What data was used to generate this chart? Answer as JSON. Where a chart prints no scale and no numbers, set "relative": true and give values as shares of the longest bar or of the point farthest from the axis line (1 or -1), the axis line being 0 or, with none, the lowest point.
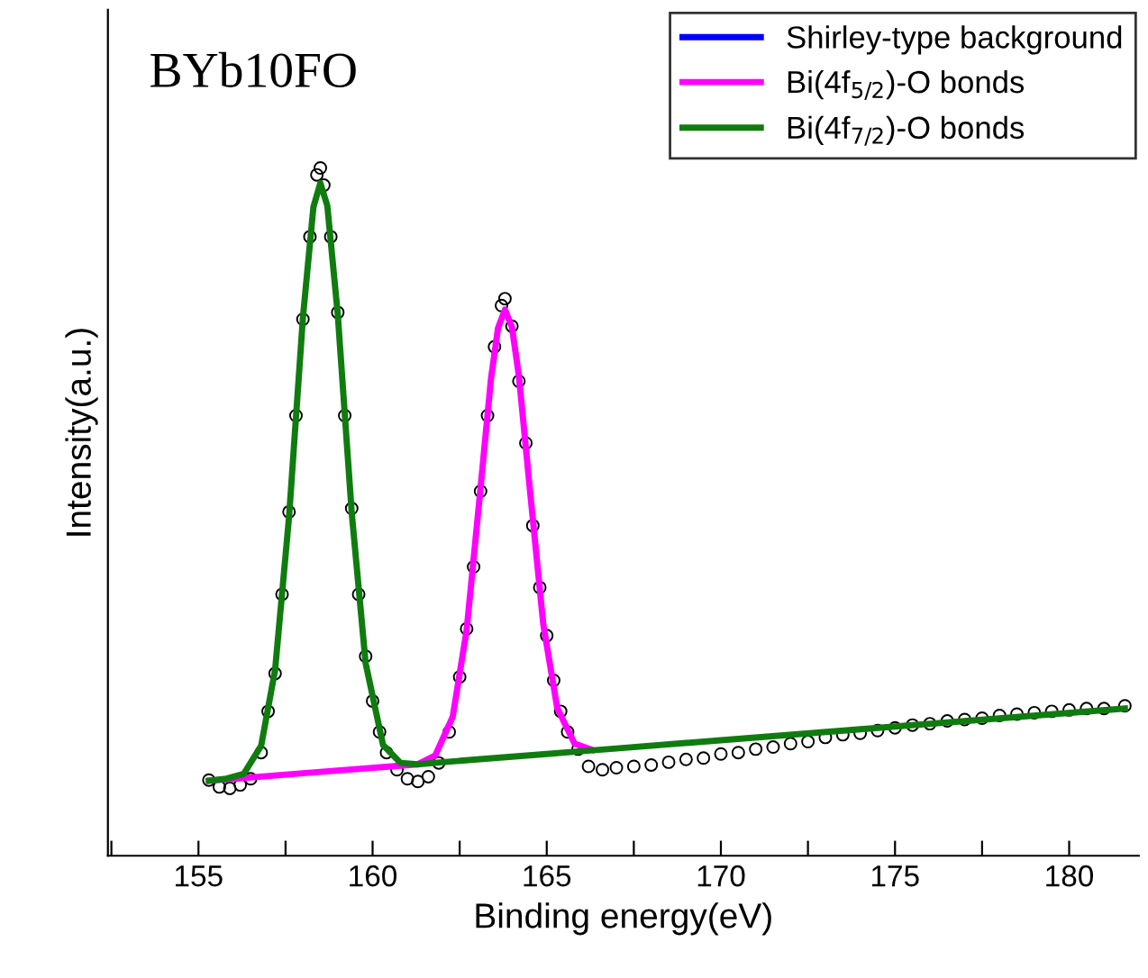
{
  "chart_data": {
    "type": "line",
    "relative": true,
    "xlabel": "Binding energy(eV)",
    "ylabel": "Intensity(a.u.)",
    "annotations": [
      "BYb10FO"
    ],
    "xlim": [
      152.4,
      182.0
    ],
    "xticks": [
      {
        "value": 152.5,
        "label": null
      },
      155,
      {
        "value": 157.5,
        "label": null
      },
      160,
      {
        "value": 162.5,
        "label": null
      },
      165,
      {
        "value": 167.5,
        "label": null
      },
      170,
      {
        "value": 172.5,
        "label": null
      },
      175,
      {
        "value": 177.5,
        "label": null
      },
      180
    ],
    "legend": "top right",
    "grid": false,
    "line_style": "solid",
    "series": [
      {
        "type": "scatter",
        "marker": "circle",
        "color": "#000000",
        "x": [
          155.3,
          155.6,
          155.9,
          156.2,
          156.5,
          156.8,
          157.0,
          157.2,
          157.4,
          157.6,
          157.8,
          158.0,
          158.2,
          158.4,
          158.5,
          158.6,
          158.8,
          159.0,
          159.2,
          159.4,
          159.6,
          159.8,
          160.0,
          160.2,
          160.4,
          160.7,
          161.0,
          161.3,
          161.6,
          161.9,
          162.2,
          162.5,
          162.7,
          162.9,
          163.1,
          163.3,
          163.5,
          163.7,
          163.8,
          164.0,
          164.2,
          164.4,
          164.6,
          164.8,
          165.0,
          165.2,
          165.4,
          165.6,
          165.9,
          166.2,
          166.6,
          167.0,
          167.5,
          168.0,
          168.5,
          169.0,
          169.5,
          170.0,
          170.5,
          171.0,
          171.5,
          172.0,
          172.5,
          173.0,
          173.5,
          174.0,
          174.5,
          175.0,
          175.5,
          176.0,
          176.5,
          177.0,
          177.5,
          178.0,
          178.5,
          179.0,
          179.5,
          180.0,
          180.5,
          181.0,
          181.6
        ],
        "values": [
          0.11,
          0.1,
          0.098,
          0.103,
          0.112,
          0.15,
          0.21,
          0.265,
          0.38,
          0.5,
          0.64,
          0.78,
          0.9,
          0.99,
          1.0,
          0.975,
          0.9,
          0.79,
          0.64,
          0.505,
          0.38,
          0.29,
          0.225,
          0.18,
          0.15,
          0.125,
          0.112,
          0.108,
          0.115,
          0.135,
          0.18,
          0.26,
          0.33,
          0.42,
          0.53,
          0.64,
          0.74,
          0.8,
          0.81,
          0.77,
          0.69,
          0.6,
          0.48,
          0.39,
          0.32,
          0.255,
          0.21,
          0.18,
          0.155,
          0.13,
          0.125,
          0.128,
          0.13,
          0.132,
          0.136,
          0.14,
          0.142,
          0.148,
          0.15,
          0.155,
          0.158,
          0.163,
          0.166,
          0.172,
          0.176,
          0.178,
          0.182,
          0.186,
          0.19,
          0.192,
          0.196,
          0.198,
          0.2,
          0.204,
          0.206,
          0.208,
          0.21,
          0.212,
          0.214,
          0.214,
          0.218
        ]
      },
      {
        "name": "Shirley-type background",
        "color": "#0000ff"
      },
      {
        "name": "Bi(4f$_{5/2}$)-O bonds",
        "color": "#ff00ff",
        "x": [
          155.3,
          158.0,
          161.3,
          161.8,
          162.3,
          162.7,
          163.1,
          163.4,
          163.6,
          163.8,
          164.0,
          164.2,
          164.5,
          164.9,
          165.3,
          165.8,
          166.3
        ],
        "values": [
          0.109,
          0.12,
          0.133,
          0.146,
          0.202,
          0.328,
          0.535,
          0.694,
          0.767,
          0.794,
          0.769,
          0.698,
          0.541,
          0.337,
          0.215,
          0.163,
          0.154
        ]
      },
      {
        "name": "Bi(4f$_{7/2}$)-O bonds",
        "color": "#107c10",
        "x": [
          155.3,
          155.8,
          156.3,
          156.8,
          157.2,
          157.6,
          158.0,
          158.3,
          158.5,
          158.7,
          159.0,
          159.4,
          159.8,
          160.3,
          160.8,
          161.3,
          162.0,
          163.0,
          164.0,
          165.0,
          166.0,
          167.0,
          170.0,
          175.0,
          181.6
        ],
        "values": [
          0.109,
          0.112,
          0.119,
          0.16,
          0.27,
          0.492,
          0.783,
          0.943,
          0.978,
          0.945,
          0.787,
          0.499,
          0.28,
          0.161,
          0.135,
          0.133,
          0.136,
          0.14,
          0.144,
          0.148,
          0.152,
          0.156,
          0.168,
          0.188,
          0.214
        ]
      }
    ]
  }
}
